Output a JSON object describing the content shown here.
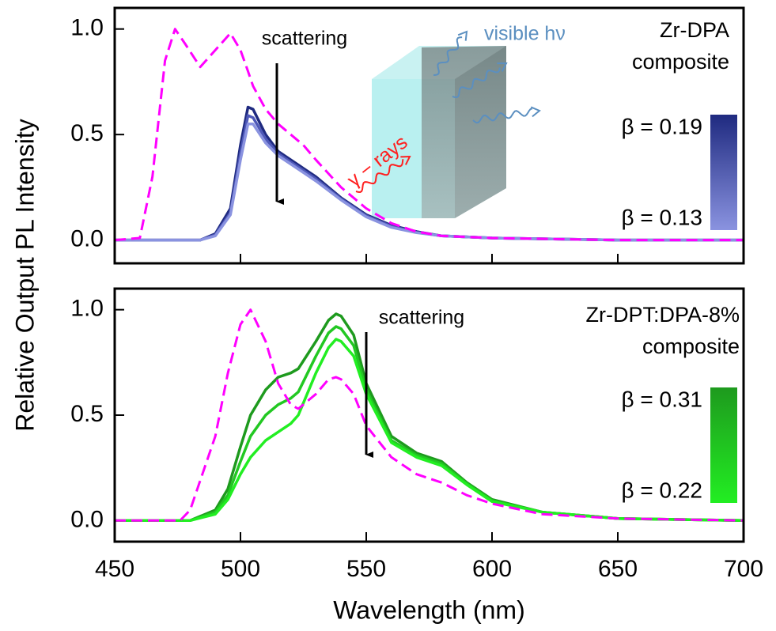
{
  "chart_data": [
    {
      "type": "line",
      "ylabel": "Relative Output PL Intensity",
      "annotations": [
        {
          "text": "scattering",
          "color": "#000000"
        },
        {
          "text": "Zr-DPA",
          "color": "#000000"
        },
        {
          "text": "composite",
          "color": "#000000"
        },
        {
          "text": "visible hν",
          "color": "#5b8fc0"
        },
        {
          "text": "γ − rays",
          "color": "#ff2020"
        }
      ],
      "colorbar_labels": [
        "β = 0.19",
        "β = 0.13"
      ],
      "x": [
        450,
        460,
        465,
        470,
        474,
        478,
        484,
        490,
        496,
        500,
        503,
        505,
        510,
        515,
        520,
        525,
        530,
        540,
        550,
        560,
        570,
        580,
        600,
        650,
        700
      ],
      "series": [
        {
          "color": "#ff00ff",
          "linestyle": "dashed",
          "values": [
            0,
            0.01,
            0.3,
            0.85,
            1.0,
            0.93,
            0.82,
            0.9,
            0.98,
            0.9,
            0.8,
            0.73,
            0.62,
            0.55,
            0.5,
            0.45,
            0.38,
            0.25,
            0.15,
            0.08,
            0.04,
            0.02,
            0.01,
            0,
            0
          ]
        },
        {
          "color": "#1f2a80",
          "linestyle": "solid",
          "values": [
            0,
            0,
            0,
            0,
            0,
            0,
            0,
            0.03,
            0.15,
            0.45,
            0.63,
            0.62,
            0.5,
            0.42,
            0.38,
            0.34,
            0.3,
            0.2,
            0.12,
            0.07,
            0.04,
            0.02,
            0.01,
            0,
            0
          ]
        },
        {
          "color": "#4e58b8",
          "linestyle": "solid",
          "values": [
            0,
            0,
            0,
            0,
            0,
            0,
            0,
            0.025,
            0.13,
            0.41,
            0.59,
            0.58,
            0.48,
            0.41,
            0.37,
            0.33,
            0.29,
            0.195,
            0.115,
            0.065,
            0.037,
            0.02,
            0.01,
            0,
            0
          ]
        },
        {
          "color": "#8a93e0",
          "linestyle": "solid",
          "values": [
            0,
            0,
            0,
            0,
            0,
            0,
            0,
            0.02,
            0.12,
            0.38,
            0.55,
            0.55,
            0.46,
            0.4,
            0.36,
            0.32,
            0.28,
            0.19,
            0.11,
            0.06,
            0.035,
            0.02,
            0.01,
            0,
            0
          ]
        }
      ],
      "xlim": [
        450,
        700
      ],
      "xticks": [
        450,
        500,
        550,
        600,
        650,
        700
      ],
      "xtick_labels": false,
      "ylim": [
        -0.11,
        1.1
      ],
      "yticks": [
        {
          "value": 0,
          "label": "0.0"
        },
        {
          "value": 0.5,
          "label": "0.5"
        },
        {
          "value": 1,
          "label": "1.0"
        }
      ]
    },
    {
      "type": "line",
      "xlabel": "Wavelength (nm)",
      "annotations": [
        {
          "text": "scattering",
          "color": "#000000"
        },
        {
          "text": "Zr-DPT:DPA-8%",
          "color": "#000000"
        },
        {
          "text": "composite",
          "color": "#000000"
        }
      ],
      "colorbar_labels": [
        "β = 0.31",
        "β = 0.22"
      ],
      "x": [
        450,
        470,
        476,
        480,
        490,
        495,
        500,
        504,
        510,
        515,
        520,
        523,
        530,
        535,
        538,
        540,
        545,
        550,
        560,
        570,
        580,
        590,
        600,
        620,
        650,
        700
      ],
      "series": [
        {
          "color": "#ff00ff",
          "linestyle": "dashed",
          "values": [
            0,
            0,
            0,
            0.05,
            0.4,
            0.7,
            0.93,
            1.0,
            0.85,
            0.65,
            0.55,
            0.53,
            0.6,
            0.67,
            0.68,
            0.67,
            0.6,
            0.45,
            0.3,
            0.22,
            0.18,
            0.12,
            0.08,
            0.03,
            0.01,
            0
          ]
        },
        {
          "color": "#1e9a1e",
          "linestyle": "solid",
          "values": [
            0,
            0,
            0,
            0,
            0.05,
            0.15,
            0.35,
            0.5,
            0.62,
            0.68,
            0.7,
            0.72,
            0.85,
            0.95,
            0.98,
            0.97,
            0.88,
            0.65,
            0.4,
            0.32,
            0.28,
            0.18,
            0.1,
            0.04,
            0.01,
            0
          ]
        },
        {
          "color": "#22c822",
          "linestyle": "solid",
          "values": [
            0,
            0,
            0,
            0,
            0.04,
            0.12,
            0.28,
            0.4,
            0.5,
            0.55,
            0.58,
            0.61,
            0.78,
            0.89,
            0.92,
            0.91,
            0.83,
            0.62,
            0.38,
            0.31,
            0.27,
            0.175,
            0.095,
            0.04,
            0.01,
            0
          ]
        },
        {
          "color": "#22ee22",
          "linestyle": "solid",
          "values": [
            0,
            0,
            0,
            0,
            0.03,
            0.1,
            0.22,
            0.3,
            0.38,
            0.42,
            0.46,
            0.5,
            0.7,
            0.82,
            0.86,
            0.85,
            0.78,
            0.6,
            0.37,
            0.3,
            0.26,
            0.17,
            0.09,
            0.04,
            0.01,
            0
          ]
        }
      ],
      "xlim": [
        450,
        700
      ],
      "xticks": [
        450,
        500,
        550,
        600,
        650,
        700
      ],
      "xtick_labels": true,
      "ylim": [
        -0.1,
        1.1
      ],
      "yticks": [
        {
          "value": 0,
          "label": "0.0"
        },
        {
          "value": 0.5,
          "label": "0.5"
        },
        {
          "value": 1,
          "label": "1.0"
        }
      ]
    }
  ]
}
